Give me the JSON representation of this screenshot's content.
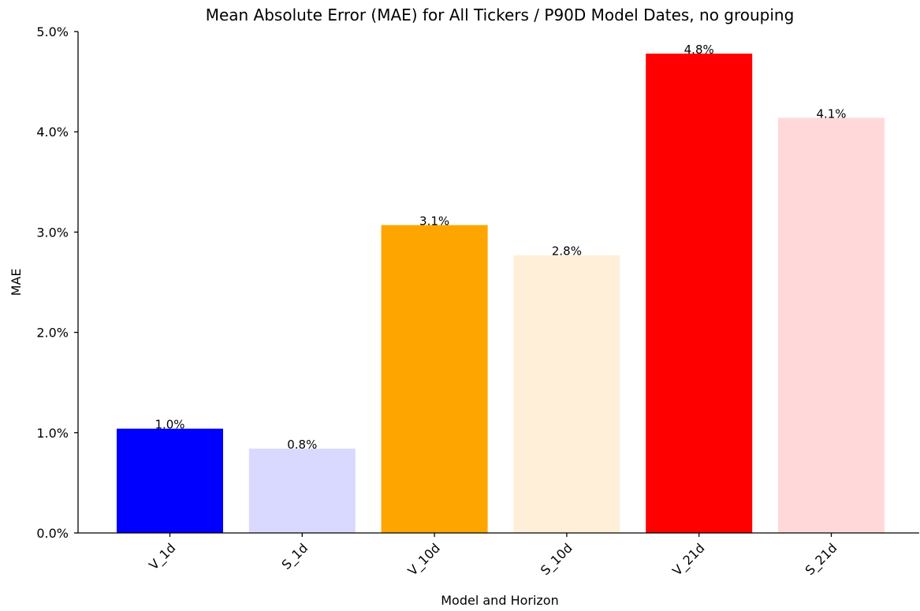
{
  "chart_data": {
    "type": "bar",
    "title": "Mean Absolute Error (MAE) for All Tickers / P90D Model Dates, no grouping",
    "xlabel": "Model and Horizon",
    "ylabel": "MAE",
    "categories": [
      "V_1d",
      "S_1d",
      "V_10d",
      "S_10d",
      "V_21d",
      "S_21d"
    ],
    "values": [
      1.04,
      0.84,
      3.07,
      2.77,
      4.78,
      4.14
    ],
    "data_labels": [
      "1.0%",
      "0.8%",
      "3.1%",
      "2.8%",
      "4.8%",
      "4.1%"
    ],
    "colors": [
      "#0000ff",
      "#d9d9ff",
      "#ffa500",
      "#ffefd9",
      "#ff0000",
      "#ffd9d9"
    ],
    "ylim": [
      0,
      5.0
    ],
    "yticks": [
      0,
      1,
      2,
      3,
      4,
      5
    ],
    "ytick_labels": [
      "0.0%",
      "1.0%",
      "2.0%",
      "3.0%",
      "4.0%",
      "5.0%"
    ],
    "grid": false,
    "legend": "none"
  }
}
